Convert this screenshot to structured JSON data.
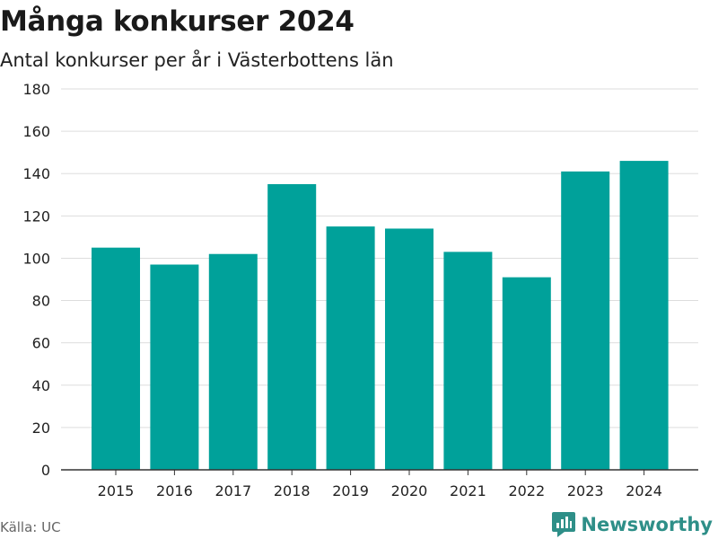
{
  "header": {
    "title": "Många konkurser 2024",
    "subtitle": "Antal konkurser per år i Västerbottens län"
  },
  "footer": {
    "source": "Källa: UC",
    "brand": "Newsworthy",
    "brand_icon": "newsworthy-logo-icon"
  },
  "colors": {
    "bar": "#00a19a",
    "grid": "#dddddd",
    "axis": "#333333",
    "brand": "#2e8f88"
  },
  "chart_data": {
    "type": "bar",
    "categories": [
      "2015",
      "2016",
      "2017",
      "2018",
      "2019",
      "2020",
      "2021",
      "2022",
      "2023",
      "2024"
    ],
    "values": [
      105,
      97,
      102,
      135,
      115,
      114,
      103,
      91,
      141,
      146
    ],
    "ylim": [
      0,
      180
    ],
    "yticks": [
      0,
      20,
      40,
      60,
      80,
      100,
      120,
      140,
      160,
      180
    ],
    "grid": true,
    "legend": "none"
  }
}
